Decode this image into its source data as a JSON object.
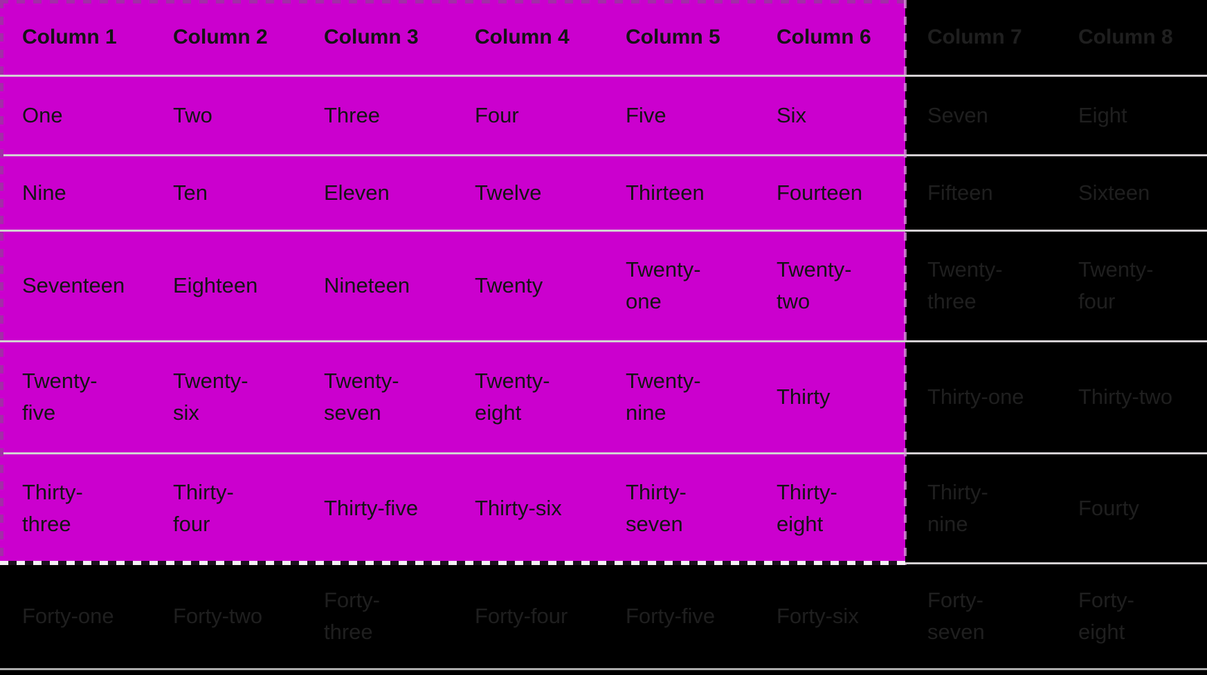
{
  "colors": {
    "selection_fill": "#CB00CE",
    "table_background": "#000000",
    "selected_text": "#141414",
    "unselected_text": "#1F1F1F",
    "row_divider": "#D4D0D3",
    "table_bottom_border": "#ACACAC",
    "ant_dark_dash": "#A22EA7",
    "ant_light_dash": "#F4EFF4",
    "ant_gap_dark": "#1C101E",
    "ant_right_dash": "#DC9ADF"
  },
  "table": {
    "headers": [
      "Column 1",
      "Column 2",
      "Column 3",
      "Column 4",
      "Column 5",
      "Column 6",
      "Column 7",
      "Column 8"
    ],
    "rows": [
      [
        "One",
        "Two",
        "Three",
        "Four",
        "Five",
        "Six",
        "Seven",
        "Eight"
      ],
      [
        "Nine",
        "Ten",
        "Eleven",
        "Twelve",
        "Thirteen",
        "Fourteen",
        "Fifteen",
        "Sixteen"
      ],
      [
        "Seventeen",
        "Eighteen",
        "Nineteen",
        "Twenty",
        "Twenty-\none",
        "Twenty-\ntwo",
        "Twenty-\nthree",
        "Twenty-\nfour"
      ],
      [
        "Twenty-\nfive",
        "Twenty-\nsix",
        "Twenty-\nseven",
        "Twenty-\neight",
        "Twenty-\nnine",
        "Thirty",
        "Thirty-one",
        "Thirty-two"
      ],
      [
        "Thirty-\nthree",
        "Thirty-\nfour",
        "Thirty-five",
        "Thirty-six",
        "Thirty-\nseven",
        "Thirty-\neight",
        "Thirty-\nnine",
        "Fourty"
      ],
      [
        "Forty-one",
        "Forty-two",
        "Forty-\nthree",
        "Forty-four",
        "Forty-five",
        "Forty-six",
        "Forty-\nseven",
        "Forty-\neight"
      ]
    ],
    "selection": {
      "selected_column_count": 6,
      "selected_row_count_including_header": 6
    }
  }
}
